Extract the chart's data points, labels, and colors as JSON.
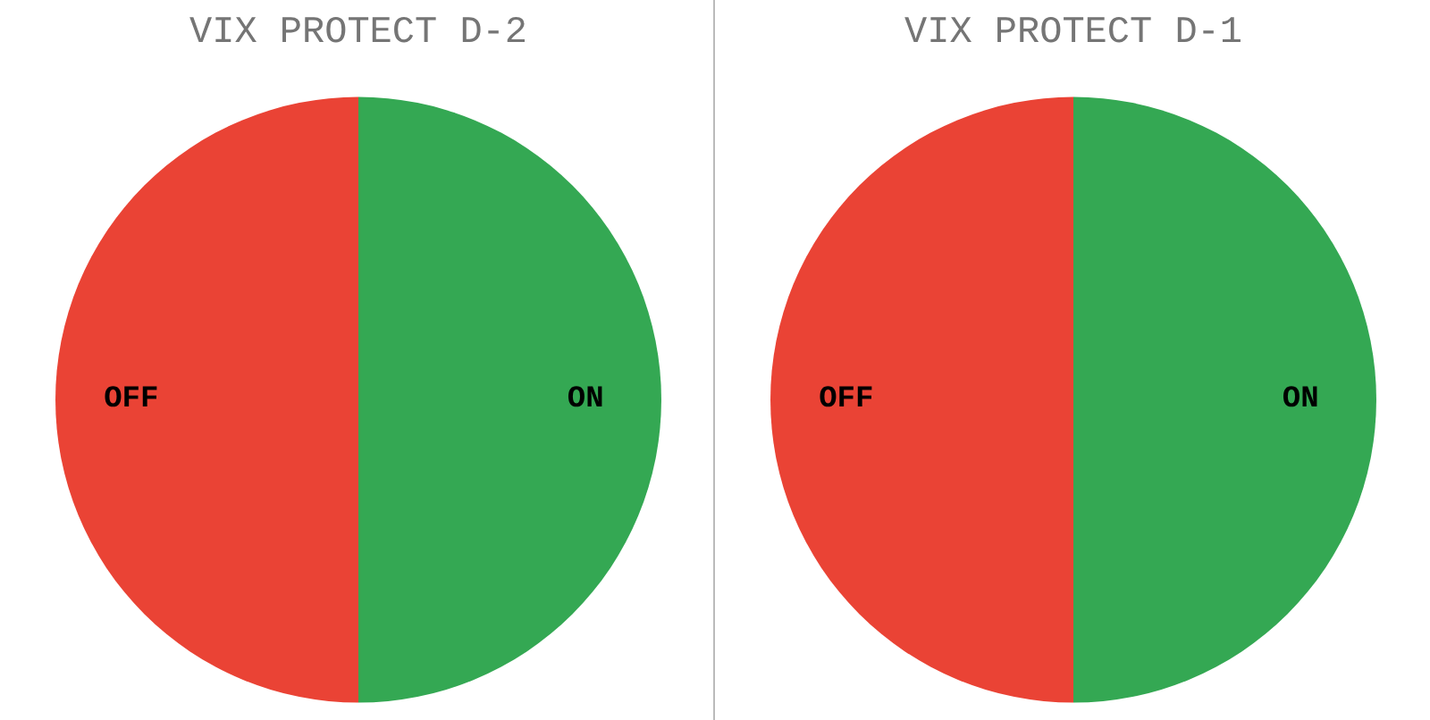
{
  "chart_data": [
    {
      "type": "pie",
      "title": "VIX PROTECT D-2",
      "categories": [
        "ON",
        "OFF"
      ],
      "values": [
        50,
        50
      ],
      "colors": [
        "#34a853",
        "#ea4335"
      ]
    },
    {
      "type": "pie",
      "title": "VIX PROTECT D-1",
      "categories": [
        "ON",
        "OFF"
      ],
      "values": [
        50,
        50
      ],
      "colors": [
        "#34a853",
        "#ea4335"
      ]
    }
  ]
}
